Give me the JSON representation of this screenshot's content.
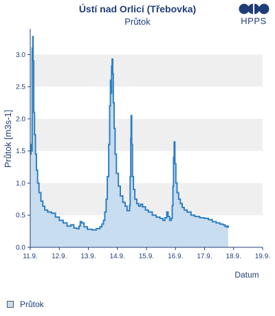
{
  "header": {
    "title": "Ústí nad Orlicí (Třebovka)",
    "subtitle": "Průtok",
    "logo_text": "HPPS"
  },
  "legend": {
    "label": "Průtok"
  },
  "colors": {
    "line": "#2f7fc1",
    "fill": "#c9ddf0",
    "band": "#efefef",
    "axis": "#1f3d7a",
    "logo": "#1f3d7a"
  },
  "chart_data": {
    "type": "area",
    "title": "Ústí nad Orlicí (Třebovka)",
    "subtitle": "Průtok",
    "xlabel": "Datum",
    "ylabel": "Průtok [m3s-1]",
    "ylim": [
      0,
      3.4
    ],
    "xlim": [
      "11.9.",
      "19.9."
    ],
    "xticks": [
      "11.9.",
      "12.9.",
      "13.9.",
      "14.9.",
      "15.9.",
      "16.9.",
      "17.9.",
      "18.9.",
      "19.9."
    ],
    "yticks": [
      "0.0",
      "0.5",
      "1.0",
      "1.5",
      "2.0",
      "2.5",
      "3.0"
    ],
    "grid": "alternating horizontal bands",
    "legend_position": "bottom-left",
    "series": [
      {
        "name": "Průtok",
        "x_unit": "days from 11.9. 00:00",
        "points": [
          [
            0.0,
            1.45
          ],
          [
            0.04,
            1.6
          ],
          [
            0.07,
            1.5
          ],
          [
            0.1,
            3.1
          ],
          [
            0.13,
            3.28
          ],
          [
            0.15,
            2.9
          ],
          [
            0.18,
            2.1
          ],
          [
            0.22,
            1.75
          ],
          [
            0.27,
            1.45
          ],
          [
            0.32,
            1.2
          ],
          [
            0.38,
            1.0
          ],
          [
            0.45,
            0.85
          ],
          [
            0.55,
            0.72
          ],
          [
            0.65,
            0.64
          ],
          [
            0.75,
            0.58
          ],
          [
            0.9,
            0.55
          ],
          [
            1.1,
            0.53
          ],
          [
            1.3,
            0.47
          ],
          [
            1.5,
            0.42
          ],
          [
            1.7,
            0.38
          ],
          [
            1.9,
            0.33
          ],
          [
            2.1,
            0.35
          ],
          [
            2.25,
            0.3
          ],
          [
            2.4,
            0.29
          ],
          [
            2.52,
            0.33
          ],
          [
            2.58,
            0.4
          ],
          [
            2.66,
            0.38
          ],
          [
            2.78,
            0.32
          ],
          [
            2.95,
            0.28
          ],
          [
            3.2,
            0.27
          ],
          [
            3.4,
            0.29
          ],
          [
            3.6,
            0.32
          ],
          [
            3.7,
            0.36
          ],
          [
            3.78,
            0.42
          ],
          [
            3.85,
            0.55
          ],
          [
            3.92,
            0.75
          ],
          [
            3.98,
            1.1
          ],
          [
            4.05,
            1.6
          ],
          [
            4.1,
            2.2
          ],
          [
            4.14,
            2.6
          ],
          [
            4.17,
            2.4
          ],
          [
            4.2,
            2.82
          ],
          [
            4.23,
            2.93
          ],
          [
            4.26,
            2.7
          ],
          [
            4.29,
            2.25
          ],
          [
            4.33,
            1.85
          ],
          [
            4.38,
            1.45
          ],
          [
            4.45,
            1.15
          ],
          [
            4.55,
            0.95
          ],
          [
            4.65,
            0.8
          ],
          [
            4.78,
            0.7
          ],
          [
            4.9,
            0.64
          ],
          [
            5.0,
            0.57
          ],
          [
            5.06,
            0.57
          ],
          [
            5.13,
            0.65
          ],
          [
            5.16,
            1.1
          ],
          [
            5.19,
            1.7
          ],
          [
            5.21,
            2.05
          ],
          [
            5.24,
            1.6
          ],
          [
            5.28,
            1.1
          ],
          [
            5.33,
            0.9
          ],
          [
            5.4,
            0.75
          ],
          [
            5.5,
            0.68
          ],
          [
            5.6,
            0.64
          ],
          [
            5.7,
            0.67
          ],
          [
            5.8,
            0.63
          ],
          [
            5.95,
            0.58
          ],
          [
            6.1,
            0.55
          ],
          [
            6.3,
            0.5
          ],
          [
            6.5,
            0.47
          ],
          [
            6.7,
            0.45
          ],
          [
            6.85,
            0.42
          ],
          [
            6.95,
            0.46
          ],
          [
            7.05,
            0.55
          ],
          [
            7.12,
            0.48
          ],
          [
            7.2,
            0.42
          ],
          [
            7.28,
            0.45
          ],
          [
            7.33,
            0.65
          ],
          [
            7.37,
            0.95
          ],
          [
            7.4,
            1.4
          ],
          [
            7.43,
            1.64
          ],
          [
            7.47,
            1.3
          ],
          [
            7.52,
            1.0
          ],
          [
            7.58,
            0.85
          ],
          [
            7.66,
            0.75
          ],
          [
            7.75,
            0.68
          ],
          [
            7.85,
            0.62
          ],
          [
            7.95,
            0.58
          ],
          [
            8.1,
            0.55
          ],
          [
            8.3,
            0.5
          ],
          [
            8.5,
            0.48
          ],
          [
            8.75,
            0.46
          ],
          [
            9.0,
            0.45
          ],
          [
            9.2,
            0.43
          ],
          [
            9.4,
            0.4
          ],
          [
            9.6,
            0.38
          ],
          [
            9.8,
            0.36
          ],
          [
            9.95,
            0.35
          ],
          [
            10.05,
            0.33
          ],
          [
            10.1,
            0.32
          ],
          [
            10.18,
            0.33
          ],
          [
            10.22,
            0.3
          ]
        ]
      }
    ]
  }
}
